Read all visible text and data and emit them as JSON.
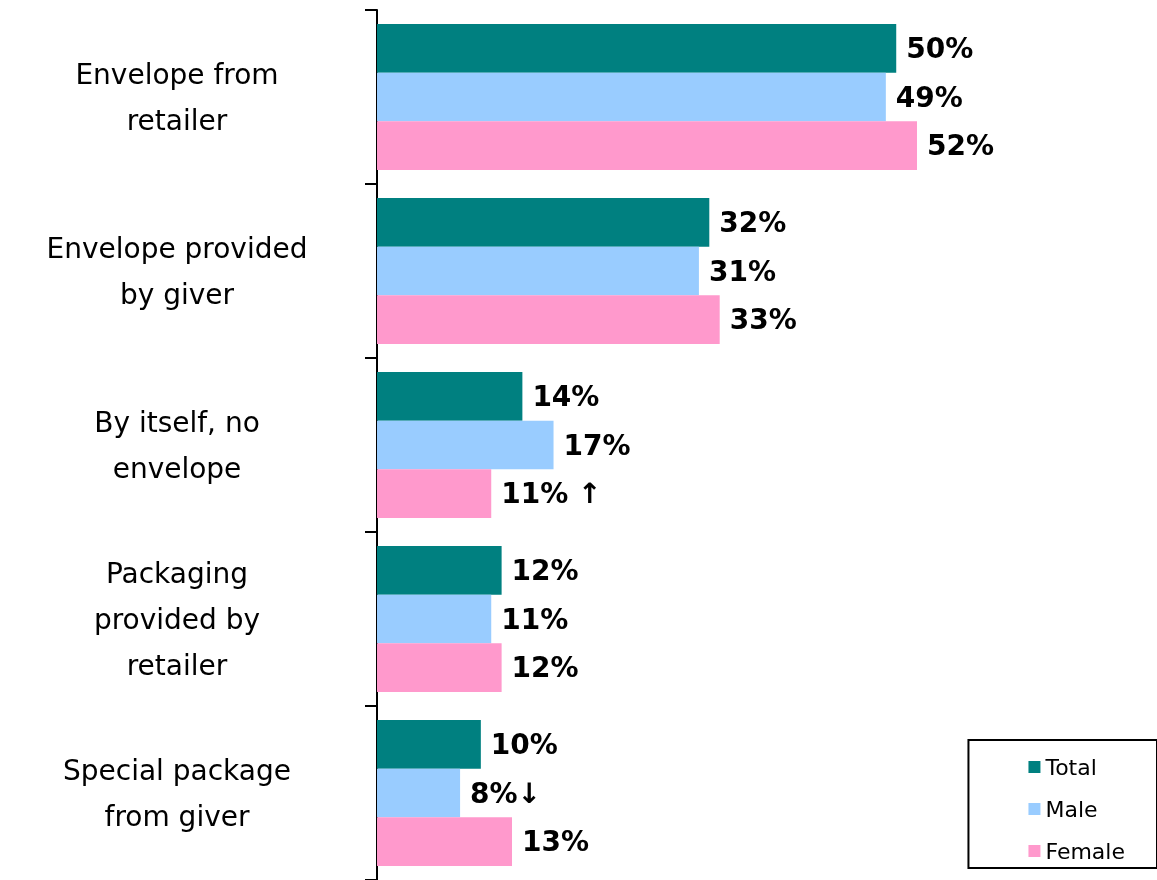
{
  "chart_data": {
    "type": "bar",
    "orientation": "horizontal",
    "categories": [
      "Envelope from retailer",
      "Envelope provided by giver",
      "By itself, no envelope",
      "Packaging provided by retailer",
      "Special package from giver"
    ],
    "series": [
      {
        "name": "Total",
        "color": "#008080",
        "values": [
          50,
          32,
          14,
          12,
          10
        ],
        "value_labels": [
          "50%",
          "32%",
          "14%",
          "12%",
          "10%"
        ]
      },
      {
        "name": "Male",
        "color": "#99ccff",
        "values": [
          49,
          31,
          17,
          11,
          8
        ],
        "value_labels": [
          "49%",
          "31%",
          "17%",
          "11%",
          "8%↓"
        ]
      },
      {
        "name": "Female",
        "color": "#ff99cc",
        "values": [
          52,
          33,
          11,
          12,
          13
        ],
        "value_labels": [
          "52%",
          "33%",
          "11% ↑",
          "12%",
          "13%"
        ]
      }
    ],
    "grid": false,
    "legend": "bottom right",
    "tick_labels": "y"
  }
}
